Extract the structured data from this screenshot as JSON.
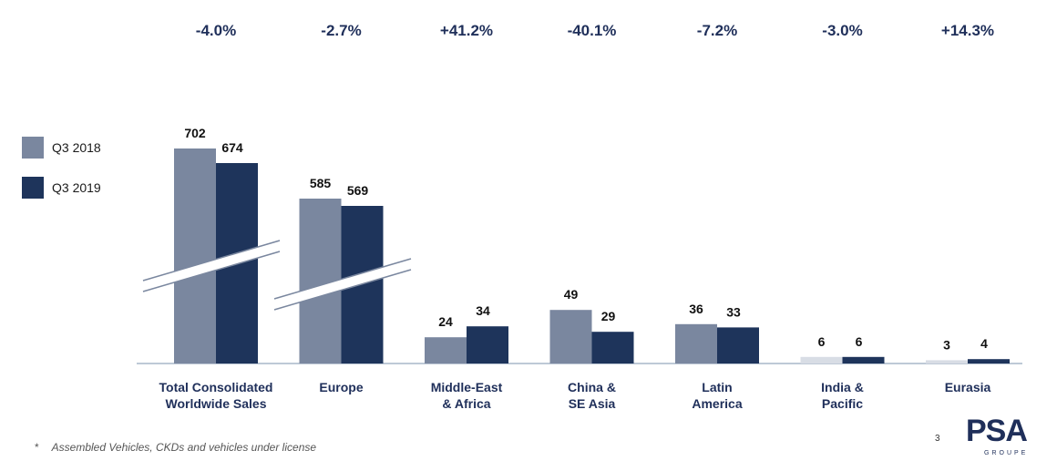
{
  "chart_data": {
    "type": "bar",
    "categories": [
      [
        "Total Consolidated",
        "Worldwide Sales"
      ],
      [
        "Europe"
      ],
      [
        "Middle-East",
        "& Africa"
      ],
      [
        "China &",
        "SE Asia"
      ],
      [
        "Latin",
        "America"
      ],
      [
        "India &",
        "Pacific"
      ],
      [
        "Eurasia"
      ]
    ],
    "series": [
      {
        "name": "Q3 2018",
        "values": [
          702,
          585,
          24,
          49,
          36,
          6,
          3
        ],
        "color": "#7a879f"
      },
      {
        "name": "Q3 2019",
        "values": [
          674,
          569,
          34,
          29,
          33,
          6,
          4
        ],
        "color": "#1e345b"
      }
    ],
    "changes": [
      "-4.0%",
      "-2.7%",
      "+41.2%",
      "-40.1%",
      "-7.2%",
      "-3.0%",
      "+14.3%"
    ],
    "axis_break_categories": [
      "Total Consolidated Worldwide Sales",
      "Europe"
    ],
    "legend_placement": "left",
    "grid": false
  },
  "footnote": {
    "marker": "*",
    "text": "Assembled Vehicles, CKDs and vehicles under license"
  },
  "page_number": "3",
  "logo": {
    "text": "PSA",
    "subtext": "GROUPE"
  }
}
